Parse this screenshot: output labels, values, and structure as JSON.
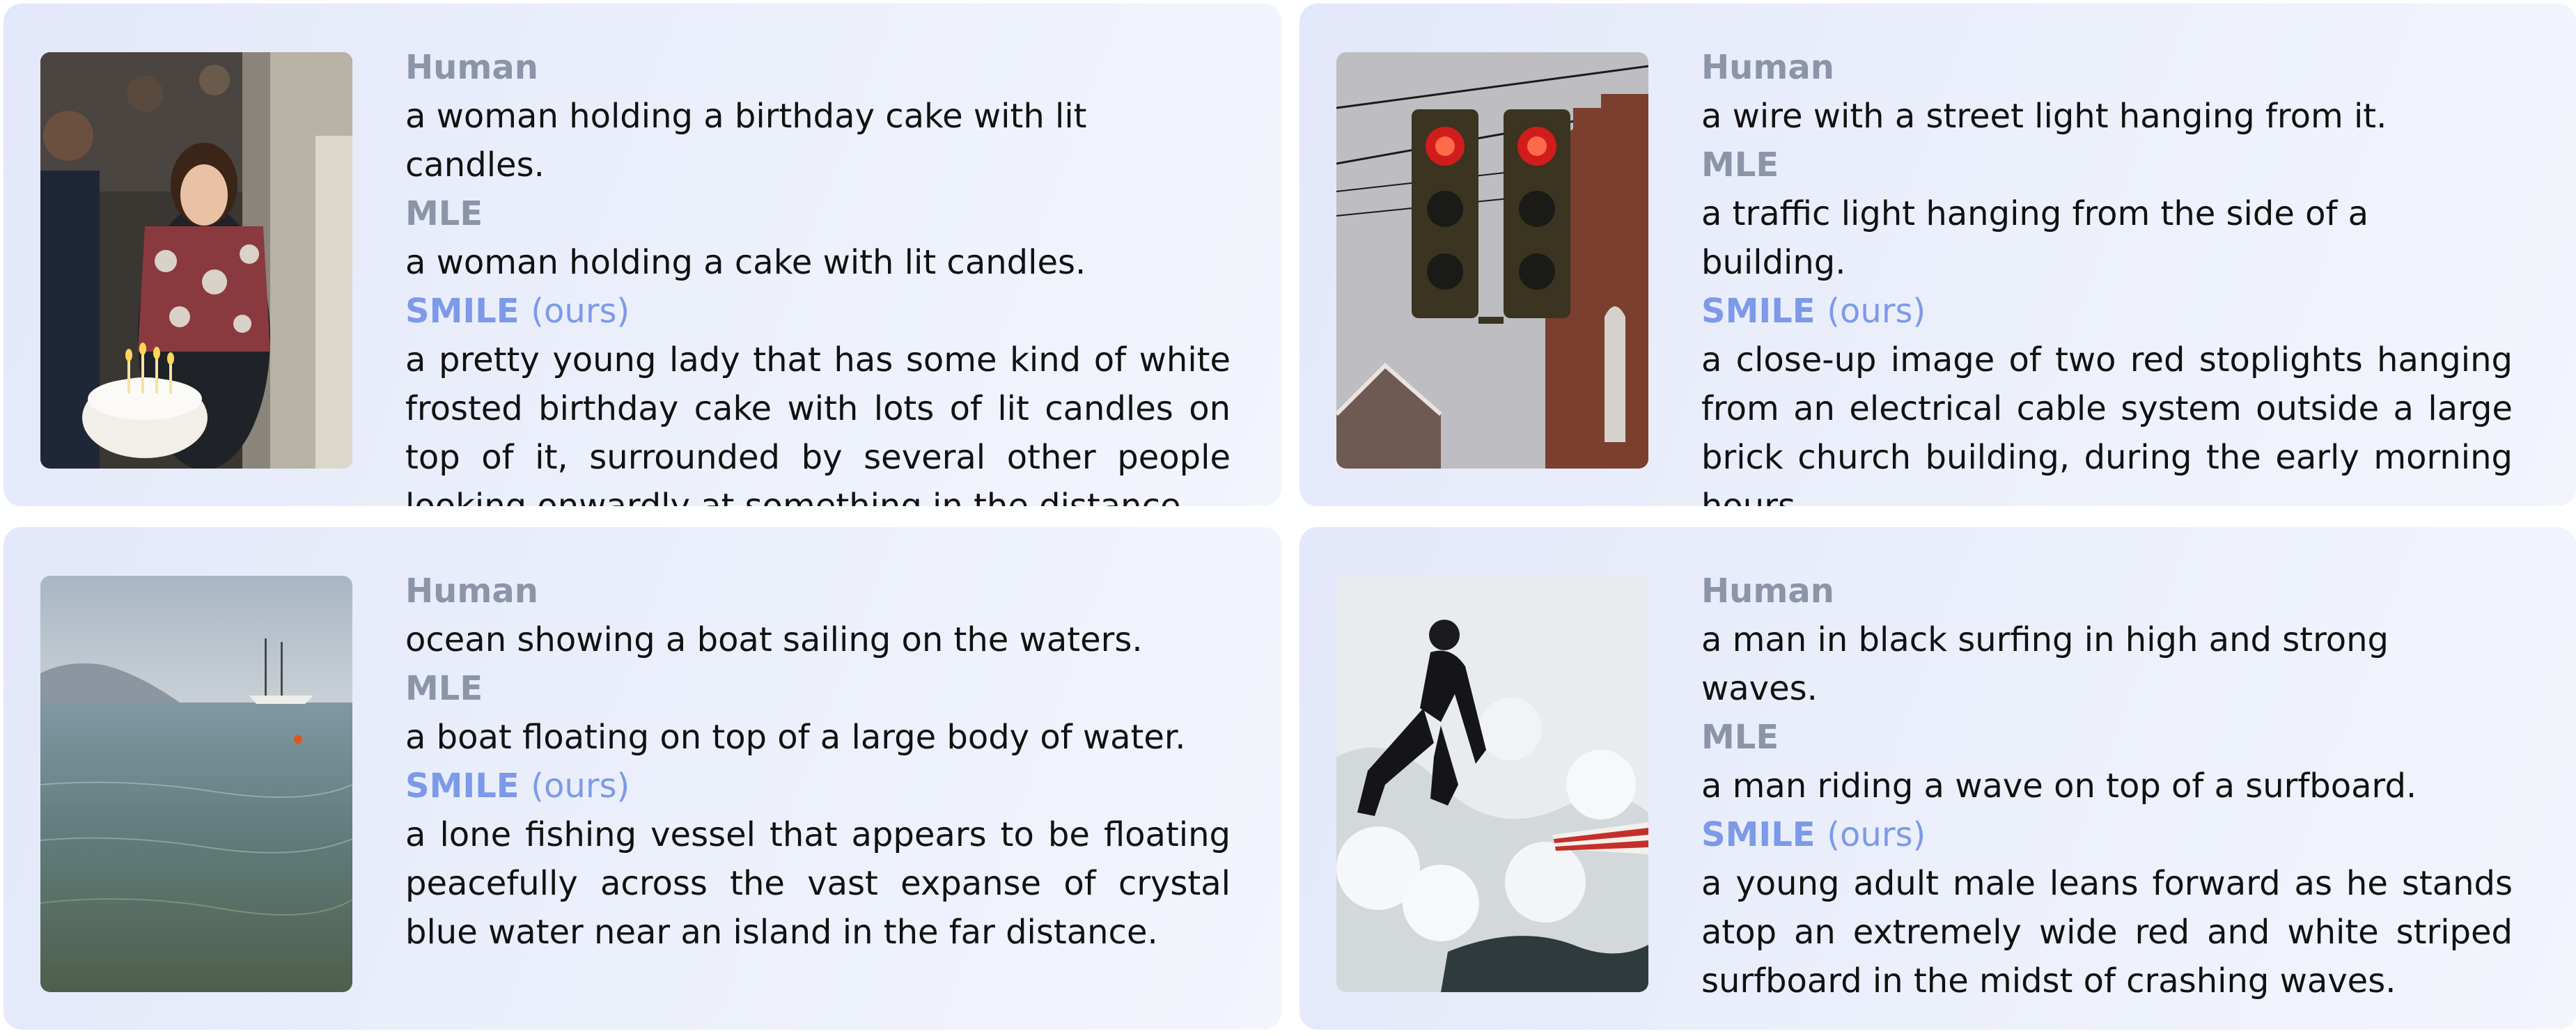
{
  "labels": {
    "human": "Human",
    "mle": "MLE",
    "smile": "SMILE",
    "ours": "(ours)"
  },
  "colors": {
    "card_bg": "#e8ecfa",
    "label_gray": "#8c95a8",
    "label_blue": "#7d9ae8",
    "text": "#111111"
  },
  "examples": [
    {
      "photo": "woman-holding-birthday-cake-photo",
      "human": "a woman holding a birthday cake with lit candles.",
      "mle": "a woman holding a cake with lit candles.",
      "smile": "a pretty young lady that has some kind of white frosted birthday cake with lots of lit candles on top of it, surrounded by several other people looking onwardly at something in the distance."
    },
    {
      "photo": "traffic-lights-photo",
      "human": "a wire with a street light hanging from it.",
      "mle": "a traffic light hanging from the side of a building.",
      "smile": "a close-up image of two red stoplights hanging from an electrical cable system outside a large brick church building, during the early morning hours."
    },
    {
      "photo": "sailboat-on-water-photo",
      "human": "ocean showing a boat sailing on the waters.",
      "mle": "a boat floating on top of a large body of water.",
      "smile": "a lone fishing vessel that appears to be floating peacefully across the vast expanse of crystal blue water near an island in the far distance."
    },
    {
      "photo": "surfer-photo",
      "human": "a man in black surfing in high and strong waves.",
      "mle": "a man riding a wave on top of a surfboard.",
      "smile": "a young adult male leans forward as he stands atop an extremely wide red and white striped surfboard in the midst of crashing waves."
    }
  ]
}
